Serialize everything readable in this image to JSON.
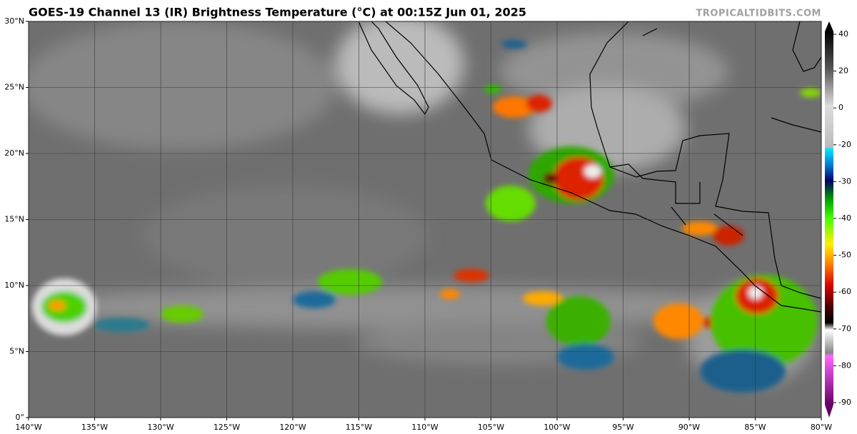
{
  "header": {
    "title": "GOES-19 Channel 13 (IR) Brightness Temperature (°C) at 00:15Z Jun 01, 2025",
    "credit": "TROPICALTIDBITS.COM"
  },
  "map": {
    "xlim": [
      -140,
      -80
    ],
    "ylim": [
      0,
      30
    ],
    "xticks": [
      {
        "value": -140,
        "label": "140°W"
      },
      {
        "value": -135,
        "label": "135°W"
      },
      {
        "value": -130,
        "label": "130°W"
      },
      {
        "value": -125,
        "label": "125°W"
      },
      {
        "value": -120,
        "label": "120°W"
      },
      {
        "value": -115,
        "label": "115°W"
      },
      {
        "value": -110,
        "label": "110°W"
      },
      {
        "value": -105,
        "label": "105°W"
      },
      {
        "value": -100,
        "label": "100°W"
      },
      {
        "value": -95,
        "label": "95°W"
      },
      {
        "value": -90,
        "label": "90°W"
      },
      {
        "value": -85,
        "label": "85°W"
      },
      {
        "value": -80,
        "label": "80°W"
      }
    ],
    "yticks": [
      {
        "value": 0,
        "label": "0°"
      },
      {
        "value": 5,
        "label": "5°N"
      },
      {
        "value": 10,
        "label": "10°N"
      },
      {
        "value": 15,
        "label": "15°N"
      },
      {
        "value": 20,
        "label": "20°N"
      },
      {
        "value": 25,
        "label": "25°N"
      },
      {
        "value": 30,
        "label": "30°N"
      }
    ]
  },
  "colorbar": {
    "ticks": [
      40,
      20,
      0,
      -20,
      -30,
      -40,
      -50,
      -60,
      -70,
      -80,
      -90
    ]
  }
}
